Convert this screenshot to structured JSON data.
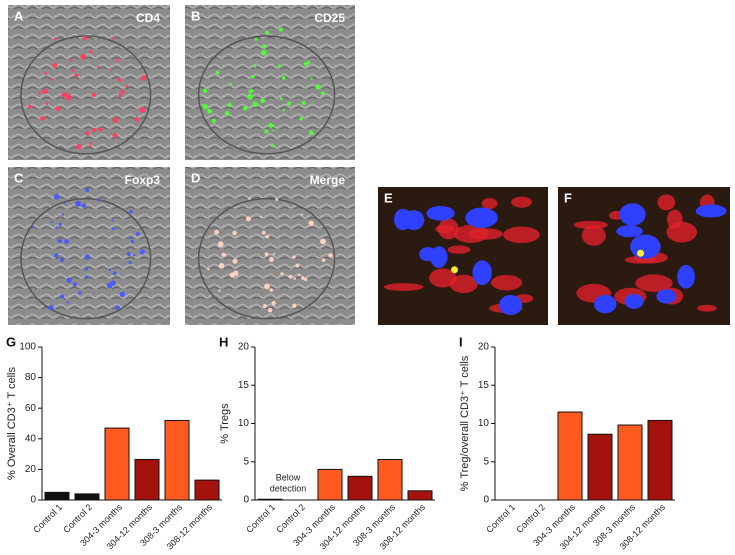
{
  "panels": [
    {
      "label": "A",
      "caption": "CD4"
    },
    {
      "label": "B",
      "caption": "CD25"
    },
    {
      "label": "C",
      "caption": "Foxp3"
    },
    {
      "label": "D",
      "caption": "Merge"
    },
    {
      "label": "E"
    },
    {
      "label": "F"
    }
  ],
  "chart_data": [
    {
      "type": "bar",
      "panel_label": "G",
      "y_label": "% Overall CD3⁺ T cells",
      "categories": [
        "Control 1",
        "Control 2",
        "304-3 months",
        "304-12 months",
        "308-3 months",
        "308-12 months"
      ],
      "values": [
        5,
        4,
        47,
        26.5,
        52,
        13
      ],
      "colors": [
        "#111111",
        "#111111",
        "#ff5a1f",
        "#a3120c",
        "#ff5a1f",
        "#a3120c"
      ],
      "ylim": [
        0,
        100
      ],
      "yticks": [
        0,
        20,
        40,
        60,
        80,
        100
      ]
    },
    {
      "type": "bar",
      "panel_label": "H",
      "y_label": "% Tregs",
      "categories": [
        "Control 1",
        "Control 2",
        "304-3 months",
        "304-12 months",
        "308-3 months",
        "308-12 months"
      ],
      "values": [
        0.1,
        0,
        4,
        3.1,
        5.3,
        1.2
      ],
      "colors": [
        "#111111",
        "#111111",
        "#ff5a1f",
        "#a3120c",
        "#ff5a1f",
        "#a3120c"
      ],
      "annotation": [
        "Below",
        "detection"
      ],
      "ylim": [
        0,
        20
      ],
      "yticks": [
        0,
        5,
        10,
        15,
        20
      ]
    },
    {
      "type": "bar",
      "panel_label": "I",
      "y_label": "% Treg/overall CD3⁺ T cells",
      "categories": [
        "Control 1",
        "Control 2",
        "304-3 months",
        "304-12 months",
        "308-3 months",
        "308-12 months"
      ],
      "values": [
        0,
        0,
        11.5,
        8.6,
        9.8,
        10.4
      ],
      "colors": [
        "#111111",
        "#111111",
        "#ff5a1f",
        "#a3120c",
        "#ff5a1f",
        "#a3120c"
      ],
      "ylim": [
        0,
        20
      ],
      "yticks": [
        0,
        5,
        10,
        15,
        20
      ]
    }
  ]
}
